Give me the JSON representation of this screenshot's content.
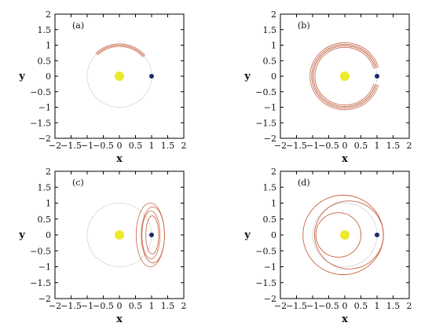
{
  "colors": {
    "trajectory": "#c8613f",
    "orbit": "#8a8aa0",
    "star": "#ecea2e",
    "planet": "#1f2a6b",
    "axis": "#000000"
  },
  "chart_data": [
    {
      "type": "line",
      "panel_label": "(a)",
      "xlabel": "x",
      "ylabel": "y",
      "xlim": [
        -2,
        2
      ],
      "ylim": [
        -2,
        2
      ],
      "x_ticks": [
        "−2",
        "−1.5",
        "−1",
        "−0.5",
        "0",
        "0.5",
        "1",
        "1.5",
        "2"
      ],
      "y_ticks": [
        "2",
        "1.5",
        "1",
        "0.5",
        "0",
        "−0.5",
        "−1",
        "−1.5",
        "−2"
      ],
      "star": {
        "x": 0,
        "y": 0
      },
      "planet": {
        "x": 1,
        "y": 0
      },
      "reference_orbit": {
        "center": [
          0,
          0
        ],
        "radius": 1
      },
      "series": [
        {
          "kind": "arc-band",
          "radii": [
            0.96,
            1.0,
            1.04
          ],
          "angle_start_deg": 40,
          "angle_end_deg": 135
        }
      ]
    },
    {
      "type": "line",
      "panel_label": "(b)",
      "xlabel": "x",
      "ylabel": "y",
      "xlim": [
        -2,
        2
      ],
      "ylim": [
        -2,
        2
      ],
      "x_ticks": [
        "−2",
        "−1.5",
        "−1",
        "−0.5",
        "0",
        "0.5",
        "1",
        "1.5",
        "2"
      ],
      "y_ticks": [
        "2",
        "1.5",
        "1",
        "0.5",
        "0",
        "−0.5",
        "−1",
        "−1.5",
        "−2"
      ],
      "star": {
        "x": 0,
        "y": 0
      },
      "planet": {
        "x": 1,
        "y": 0
      },
      "reference_orbit": {
        "center": [
          0,
          0
        ],
        "radius": 1
      },
      "series": [
        {
          "kind": "arc-band",
          "radii": [
            0.93,
            0.98,
            1.03,
            1.08
          ],
          "angle_start_deg": 15,
          "angle_end_deg": 345
        }
      ]
    },
    {
      "type": "line",
      "panel_label": "(c)",
      "xlabel": "x",
      "ylabel": "y",
      "xlim": [
        -2,
        2
      ],
      "ylim": [
        -2,
        2
      ],
      "x_ticks": [
        "−2",
        "−1.5",
        "−1",
        "−0.5",
        "0",
        "0.5",
        "1",
        "1.5",
        "2"
      ],
      "y_ticks": [
        "2",
        "1.5",
        "1",
        "0.5",
        "0",
        "−0.5",
        "−1",
        "−1.5",
        "−2"
      ],
      "star": {
        "x": 0,
        "y": 0
      },
      "planet": {
        "x": 1,
        "y": 0
      },
      "reference_orbit": {
        "center": [
          0,
          0
        ],
        "radius": 1
      },
      "series": [
        {
          "kind": "horseshoe-loops",
          "center": [
            1.0,
            0.0
          ],
          "radii_x": [
            0.2,
            0.28,
            0.36,
            0.44
          ],
          "radii_y": [
            0.6,
            0.75,
            0.88,
            1.0
          ],
          "offsets_x": [
            0.02,
            -0.02,
            0.04,
            -0.04
          ]
        }
      ]
    },
    {
      "type": "line",
      "panel_label": "(d)",
      "xlabel": "x",
      "ylabel": "y",
      "xlim": [
        -2,
        2
      ],
      "ylim": [
        -2,
        2
      ],
      "x_ticks": [
        "−2",
        "−1.5",
        "−1",
        "−0.5",
        "0",
        "0.5",
        "1",
        "1.5",
        "2"
      ],
      "y_ticks": [
        "2",
        "1.5",
        "1",
        "0.5",
        "0",
        "−0.5",
        "−1",
        "−1.5",
        "−2"
      ],
      "star": {
        "x": 0,
        "y": 0
      },
      "planet": {
        "x": 1,
        "y": 0
      },
      "reference_orbit": {
        "center": [
          0,
          0
        ],
        "radius": 1
      },
      "series": [
        {
          "kind": "circles",
          "circles": [
            {
              "center": [
                -0.05,
                0.0
              ],
              "radius": 1.25
            },
            {
              "center": [
                0.13,
                0.0
              ],
              "radius": 1.07
            },
            {
              "center": [
                -0.2,
                0.0
              ],
              "radius": 0.7
            }
          ]
        }
      ]
    }
  ]
}
